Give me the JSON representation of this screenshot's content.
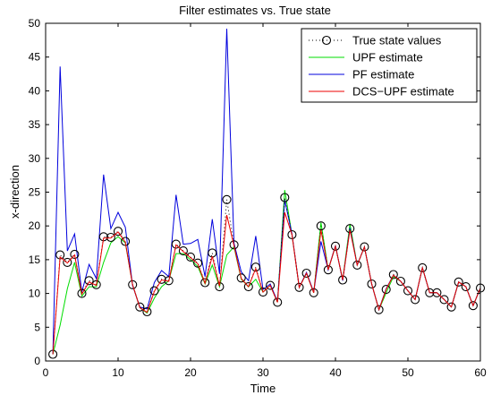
{
  "chart_data": {
    "type": "line",
    "title": "Filter estimates vs. True state",
    "xlabel": "Time",
    "ylabel": "x-direction",
    "xlim": [
      0,
      60
    ],
    "ylim": [
      0,
      50
    ],
    "xticks": [
      0,
      10,
      20,
      30,
      40,
      50,
      60
    ],
    "yticks": [
      0,
      5,
      10,
      15,
      20,
      25,
      30,
      35,
      40,
      45,
      50
    ],
    "grid": false,
    "legend_position": "top-right",
    "x": [
      1,
      2,
      3,
      4,
      5,
      6,
      7,
      8,
      9,
      10,
      11,
      12,
      13,
      14,
      15,
      16,
      17,
      18,
      19,
      20,
      21,
      22,
      23,
      24,
      25,
      26,
      27,
      28,
      29,
      30,
      31,
      32,
      33,
      34,
      35,
      36,
      37,
      38,
      39,
      40,
      41,
      42,
      43,
      44,
      45,
      46,
      47,
      48,
      49,
      50,
      51,
      52,
      53,
      54,
      55,
      56,
      57,
      58,
      59,
      60
    ],
    "series": [
      {
        "name": "True state values",
        "color": "#000000",
        "style": "dotted-circle",
        "values": [
          1.0,
          15.7,
          14.6,
          15.8,
          10.0,
          11.9,
          11.3,
          18.4,
          18.3,
          19.2,
          17.7,
          11.3,
          8.0,
          7.3,
          10.4,
          12.1,
          11.9,
          17.3,
          16.3,
          15.4,
          14.5,
          11.6,
          16.0,
          11.0,
          23.9,
          17.2,
          12.3,
          11.0,
          13.9,
          10.2,
          11.2,
          8.7,
          24.2,
          18.7,
          10.9,
          13.0,
          10.1,
          20.0,
          13.5,
          17.0,
          12.0,
          19.6,
          14.2,
          16.9,
          11.4,
          7.6,
          10.6,
          12.8,
          11.8,
          10.4,
          9.1,
          13.8,
          10.1,
          10.1,
          9.1,
          8.0,
          11.7,
          11.0,
          8.2,
          10.8
        ]
      },
      {
        "name": "UPF estimate",
        "color": "#00dd00",
        "style": "line",
        "values": [
          1.0,
          5.3,
          10.7,
          14.6,
          9.6,
          11.0,
          11.0,
          14.6,
          17.5,
          18.4,
          17.5,
          11.3,
          7.9,
          7.1,
          9.3,
          11.0,
          11.9,
          15.9,
          15.9,
          15.0,
          14.0,
          11.4,
          14.2,
          11.0,
          15.7,
          16.9,
          12.1,
          11.0,
          12.1,
          10.2,
          11.2,
          8.7,
          25.3,
          18.7,
          10.9,
          13.0,
          10.1,
          20.5,
          13.5,
          17.0,
          12.0,
          20.3,
          14.2,
          16.9,
          11.4,
          7.6,
          10.1,
          12.5,
          11.8,
          10.4,
          9.1,
          13.8,
          10.1,
          10.1,
          9.1,
          8.0,
          11.7,
          11.0,
          8.2,
          10.8
        ]
      },
      {
        "name": "PF estimate",
        "color": "#0000dd",
        "style": "line",
        "values": [
          1.0,
          43.6,
          16.3,
          18.8,
          10.2,
          14.3,
          12.2,
          27.6,
          19.6,
          22.0,
          19.8,
          11.2,
          8.0,
          7.7,
          11.6,
          13.4,
          12.5,
          24.6,
          17.3,
          17.4,
          18.0,
          12.5,
          21.0,
          12.9,
          49.2,
          17.4,
          13.2,
          11.9,
          18.5,
          10.6,
          11.4,
          8.8,
          23.8,
          18.8,
          10.9,
          13.1,
          10.2,
          17.7,
          13.5,
          17.1,
          11.9,
          19.7,
          14.2,
          16.9,
          11.4,
          7.6,
          10.7,
          12.7,
          11.8,
          10.4,
          9.1,
          13.8,
          10.1,
          10.1,
          9.1,
          8.0,
          11.7,
          11.0,
          8.2,
          10.8
        ]
      },
      {
        "name": "DCS−UPF estimate",
        "color": "#ee0000",
        "style": "line",
        "values": [
          1.0,
          15.4,
          14.5,
          15.7,
          9.9,
          11.7,
          11.2,
          18.2,
          18.2,
          19.1,
          17.6,
          11.3,
          7.9,
          7.2,
          10.3,
          12.0,
          11.8,
          17.2,
          16.2,
          15.3,
          14.4,
          11.5,
          15.5,
          11.1,
          21.6,
          17.1,
          12.2,
          11.0,
          13.7,
          10.2,
          11.2,
          8.7,
          22.0,
          18.7,
          10.9,
          13.0,
          10.1,
          19.4,
          13.5,
          17.0,
          12.0,
          19.4,
          14.2,
          16.9,
          11.4,
          7.6,
          10.6,
          12.7,
          11.8,
          10.4,
          9.1,
          13.8,
          10.1,
          10.1,
          9.1,
          8.0,
          11.7,
          11.0,
          8.2,
          10.8
        ]
      }
    ]
  }
}
